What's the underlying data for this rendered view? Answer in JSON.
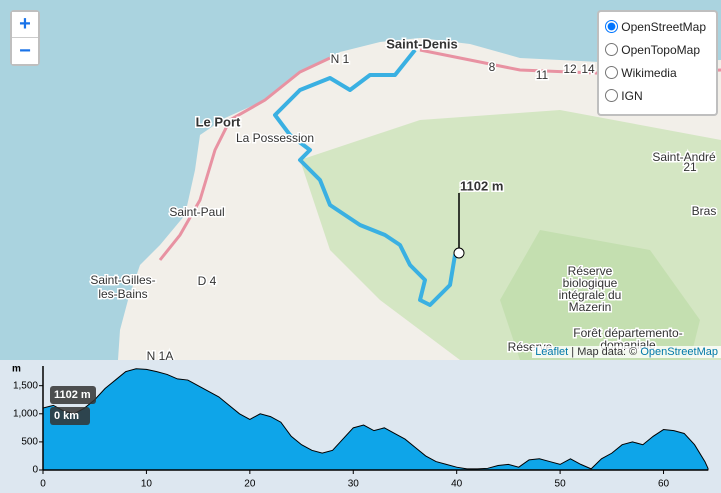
{
  "map": {
    "places": [
      "Saint-Denis",
      "Le Port",
      "La Possession",
      "Saint-Paul",
      "Saint-Gilles-",
      "les-Bains",
      "Saint-André",
      "Bras",
      "Réserve",
      "biologique",
      "intégrale du",
      "Mazerin",
      "Forêt départemento-",
      "domaniale",
      "Réserve"
    ],
    "roads": [
      "N 1",
      "D 4",
      "N 1A",
      "8",
      "11",
      "12",
      "14",
      "21"
    ],
    "marker_label": "1102 m",
    "zoom": [
      "+",
      "−"
    ],
    "layers": [
      "OpenStreetMap",
      "OpenTopoMap",
      "Wikimedia",
      "IGN"
    ],
    "selected_layer": "OpenStreetMap",
    "attribution": [
      "Leaflet",
      "| Map data: ©",
      "OpenStreetMap"
    ]
  },
  "chart_data": {
    "type": "area",
    "y_label": "m",
    "color": "#0ea5e9",
    "x": [
      0,
      1,
      2,
      3,
      4,
      5,
      6,
      7,
      8,
      9,
      10,
      11,
      12,
      13,
      14,
      15,
      16,
      17,
      18,
      19,
      20,
      21,
      22,
      23,
      24,
      25,
      26,
      27,
      28,
      29,
      30,
      31,
      32,
      33,
      34,
      35,
      36,
      37,
      38,
      39,
      40,
      41,
      42,
      43,
      44,
      45,
      46,
      47,
      48,
      49,
      50,
      51,
      52,
      53,
      54,
      55,
      56,
      57,
      58,
      59,
      60,
      61,
      62,
      63,
      64,
      64.3
    ],
    "values": [
      1102,
      1150,
      1050,
      1000,
      1100,
      1250,
      1450,
      1600,
      1750,
      1800,
      1790,
      1750,
      1700,
      1620,
      1600,
      1500,
      1400,
      1300,
      1150,
      1000,
      900,
      1000,
      950,
      850,
      600,
      450,
      350,
      300,
      350,
      550,
      750,
      800,
      700,
      750,
      650,
      550,
      400,
      250,
      150,
      100,
      50,
      20,
      20,
      30,
      80,
      100,
      50,
      180,
      200,
      150,
      100,
      200,
      100,
      20,
      200,
      300,
      450,
      500,
      450,
      600,
      720,
      700,
      650,
      450,
      150,
      30
    ],
    "xlim": [
      0,
      64.3
    ],
    "ylim": [
      0,
      1850
    ],
    "xticks": [
      0,
      10,
      20,
      30,
      40,
      50,
      60
    ],
    "yticks": [
      0,
      500,
      {
        "value": 1000,
        "label": "1,000"
      },
      {
        "value": 1500,
        "label": "1,500"
      }
    ],
    "tooltip": [
      "1102 m",
      "0 km"
    ]
  }
}
